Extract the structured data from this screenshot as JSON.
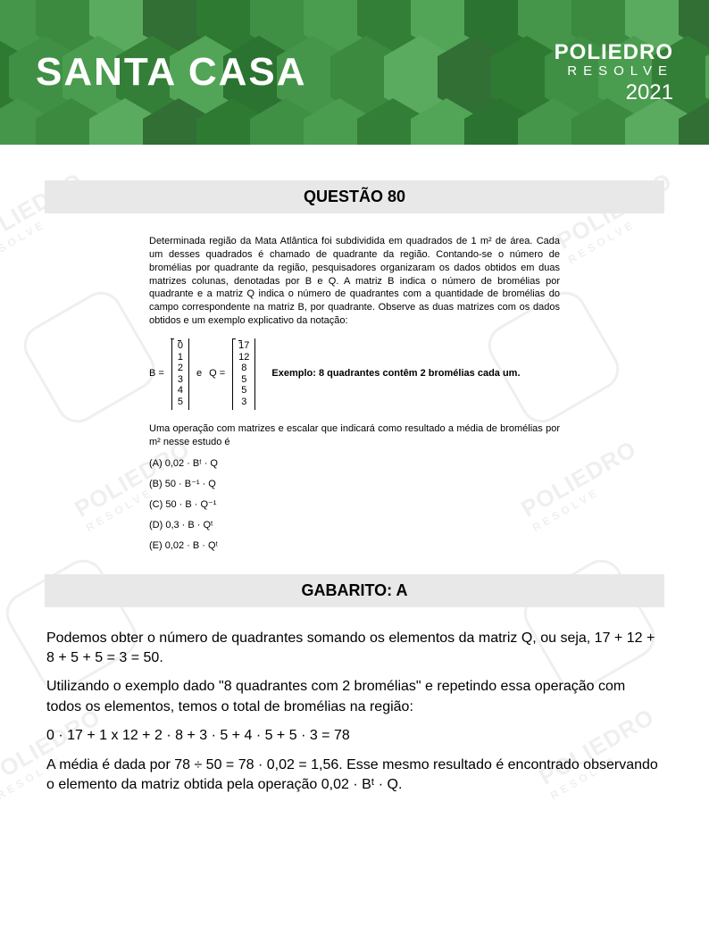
{
  "header": {
    "bg_base": "#3b8a3f",
    "hex_colors": [
      "#2e7a33",
      "#3f9044",
      "#4a9c4f",
      "#347f38",
      "#52a557",
      "#2a7330",
      "#45964a",
      "#3b8a3f",
      "#5aab5f",
      "#316f35"
    ],
    "brand_left": "SANTA CASA",
    "brand_left_fontsize": 44,
    "brand_right_line1": "POLIEDRO",
    "brand_right_line2": "RESOLVE",
    "brand_right_year": "2021"
  },
  "watermark": {
    "line1": "POLIEDRO",
    "line2": "RESOLVE"
  },
  "question": {
    "title": "QUESTÃO 80",
    "paragraph": "Determinada região da Mata Atlântica foi subdividida em quadrados de 1 m² de área. Cada um desses quadrados é chamado de quadrante da região. Contando-se o número de bromélias por quadrante da região, pesquisadores organizaram os dados obtidos em duas matrizes colunas, denotadas por B e Q. A matriz B indica o número de bromélias por quadrante e a matriz Q indica o número de quadrantes com a quantidade de bromélias do campo correspondente na matriz B, por quadrante. Observe as duas matrizes com os dados obtidos e um exemplo explicativo da notação:",
    "matrix_B_label": "B =",
    "matrix_B": [
      "0",
      "1",
      "2",
      "3",
      "4",
      "5"
    ],
    "matrix_and": "e",
    "matrix_Q_label": "Q =",
    "matrix_Q": [
      "17",
      "12",
      "8",
      "5",
      "5",
      "3"
    ],
    "matrix_example": "Exemplo: 8 quadrantes contêm 2 bromélias cada um.",
    "prompt": "Uma operação com matrizes e escalar que indicará como resultado a média de bromélias por m² nesse estudo é",
    "options": {
      "A": "(A) 0,02 · Bᵗ · Q",
      "B": "(B) 50 · B⁻¹ · Q",
      "C": "(C) 50 · B · Q⁻¹",
      "D": "(D) 0,3 · B · Qᵗ",
      "E": "(E) 0,02 · B · Qᵗ"
    }
  },
  "answer": {
    "title": "GABARITO: A",
    "p1": "Podemos obter o número de quadrantes somando os elementos da matriz Q, ou seja, 17 + 12 + 8 + 5 + 5 = 3 = 50.",
    "p2": "Utilizando o exemplo dado \"8 quadrantes com 2 bromélias\" e repetindo essa operação com todos os elementos, temos o total de bromélias na região:",
    "p3": "0 · 17 + 1 x 12 + 2 · 8 + 3 · 5 + 4 · 5 + 5 · 3 = 78",
    "p4": "A média é dada por 78 ÷ 50 = 78 · 0,02 = 1,56. Esse mesmo resultado é encontrado observando o elemento da matriz obtida pela operação 0,02 · Bᵗ · Q."
  }
}
